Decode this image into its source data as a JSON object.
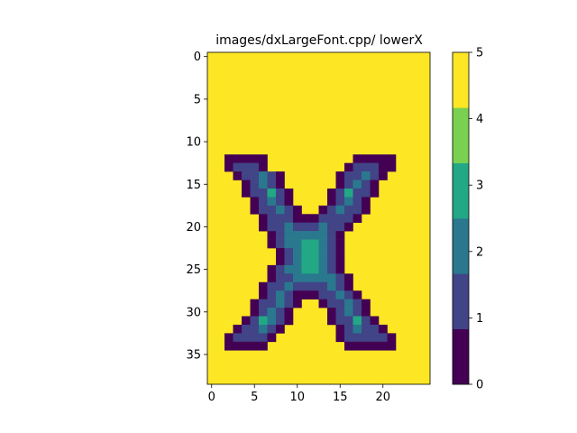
{
  "chart_data": {
    "type": "heatmap",
    "title": "images/dxLargeFont.cpp/ lowerX",
    "xlabel": "",
    "ylabel": "",
    "xlim": [
      -0.5,
      25.5
    ],
    "ylim": [
      38.5,
      -0.5
    ],
    "x_ticks": [
      0,
      5,
      10,
      15,
      20
    ],
    "y_ticks": [
      0,
      5,
      10,
      15,
      20,
      25,
      30,
      35
    ],
    "colorbar": {
      "min": 0,
      "max": 5,
      "ticks": [
        0,
        1,
        2,
        3,
        4,
        5
      ],
      "colormap": "viridis"
    },
    "grid": false,
    "background_value": 5,
    "cells_note_format": "[row, col_start, col_end_inclusive, value]",
    "cells": [
      [
        12,
        2,
        6,
        0
      ],
      [
        12,
        17,
        21,
        0
      ],
      [
        13,
        2,
        2,
        0
      ],
      [
        13,
        3,
        5,
        1
      ],
      [
        13,
        6,
        6,
        0
      ],
      [
        13,
        16,
        16,
        0
      ],
      [
        13,
        17,
        19,
        1
      ],
      [
        13,
        20,
        20,
        0
      ],
      [
        13,
        21,
        21,
        0
      ],
      [
        14,
        3,
        3,
        0
      ],
      [
        14,
        4,
        5,
        1
      ],
      [
        14,
        6,
        6,
        2
      ],
      [
        14,
        7,
        7,
        1
      ],
      [
        14,
        8,
        8,
        0
      ],
      [
        14,
        15,
        15,
        0
      ],
      [
        14,
        16,
        16,
        1
      ],
      [
        14,
        17,
        17,
        1
      ],
      [
        14,
        18,
        18,
        2
      ],
      [
        14,
        19,
        19,
        1
      ],
      [
        14,
        20,
        20,
        0
      ],
      [
        15,
        4,
        4,
        0
      ],
      [
        15,
        5,
        5,
        1
      ],
      [
        15,
        6,
        6,
        2
      ],
      [
        15,
        7,
        7,
        1
      ],
      [
        15,
        8,
        8,
        0
      ],
      [
        15,
        15,
        15,
        0
      ],
      [
        15,
        16,
        16,
        1
      ],
      [
        15,
        17,
        17,
        2
      ],
      [
        15,
        18,
        18,
        1
      ],
      [
        15,
        19,
        19,
        0
      ],
      [
        16,
        4,
        4,
        0
      ],
      [
        16,
        5,
        5,
        1
      ],
      [
        16,
        6,
        6,
        1
      ],
      [
        16,
        7,
        7,
        3
      ],
      [
        16,
        8,
        8,
        1
      ],
      [
        16,
        9,
        9,
        0
      ],
      [
        16,
        14,
        14,
        0
      ],
      [
        16,
        15,
        15,
        1
      ],
      [
        16,
        16,
        16,
        3
      ],
      [
        16,
        17,
        17,
        1
      ],
      [
        16,
        18,
        18,
        1
      ],
      [
        16,
        19,
        19,
        0
      ],
      [
        17,
        5,
        5,
        0
      ],
      [
        17,
        6,
        6,
        1
      ],
      [
        17,
        7,
        7,
        2
      ],
      [
        17,
        8,
        8,
        1
      ],
      [
        17,
        9,
        9,
        0
      ],
      [
        17,
        14,
        14,
        0
      ],
      [
        17,
        15,
        15,
        1
      ],
      [
        17,
        16,
        16,
        2
      ],
      [
        17,
        17,
        17,
        1
      ],
      [
        17,
        18,
        18,
        0
      ],
      [
        18,
        5,
        5,
        0
      ],
      [
        18,
        6,
        6,
        1
      ],
      [
        18,
        7,
        7,
        1
      ],
      [
        18,
        8,
        8,
        2
      ],
      [
        18,
        9,
        9,
        1
      ],
      [
        18,
        10,
        10,
        0
      ],
      [
        18,
        13,
        13,
        0
      ],
      [
        18,
        14,
        14,
        1
      ],
      [
        18,
        15,
        15,
        2
      ],
      [
        18,
        16,
        16,
        1
      ],
      [
        18,
        17,
        17,
        1
      ],
      [
        18,
        18,
        18,
        0
      ],
      [
        19,
        6,
        6,
        0
      ],
      [
        19,
        7,
        7,
        1
      ],
      [
        19,
        8,
        8,
        1
      ],
      [
        19,
        9,
        9,
        1
      ],
      [
        19,
        10,
        12,
        0
      ],
      [
        19,
        13,
        13,
        1
      ],
      [
        19,
        14,
        14,
        1
      ],
      [
        19,
        15,
        15,
        1
      ],
      [
        19,
        16,
        16,
        1
      ],
      [
        19,
        17,
        17,
        0
      ],
      [
        20,
        6,
        6,
        0
      ],
      [
        20,
        7,
        7,
        1
      ],
      [
        20,
        8,
        8,
        1
      ],
      [
        20,
        9,
        9,
        2
      ],
      [
        20,
        10,
        12,
        1
      ],
      [
        20,
        13,
        13,
        2
      ],
      [
        20,
        14,
        14,
        1
      ],
      [
        20,
        15,
        15,
        1
      ],
      [
        20,
        16,
        16,
        0
      ],
      [
        21,
        7,
        7,
        0
      ],
      [
        21,
        8,
        8,
        1
      ],
      [
        21,
        9,
        9,
        2
      ],
      [
        21,
        10,
        12,
        2
      ],
      [
        21,
        13,
        13,
        2
      ],
      [
        21,
        14,
        14,
        1
      ],
      [
        21,
        15,
        15,
        0
      ],
      [
        22,
        7,
        7,
        0
      ],
      [
        22,
        8,
        8,
        1
      ],
      [
        22,
        9,
        9,
        2
      ],
      [
        22,
        10,
        10,
        2
      ],
      [
        22,
        11,
        12,
        3
      ],
      [
        22,
        13,
        13,
        2
      ],
      [
        22,
        14,
        14,
        1
      ],
      [
        22,
        15,
        15,
        0
      ],
      [
        23,
        8,
        8,
        0
      ],
      [
        23,
        9,
        9,
        1
      ],
      [
        23,
        10,
        10,
        2
      ],
      [
        23,
        11,
        12,
        3
      ],
      [
        23,
        13,
        13,
        2
      ],
      [
        23,
        14,
        14,
        1
      ],
      [
        23,
        15,
        15,
        0
      ],
      [
        24,
        8,
        8,
        0
      ],
      [
        24,
        9,
        9,
        1
      ],
      [
        24,
        10,
        10,
        2
      ],
      [
        24,
        11,
        12,
        3
      ],
      [
        24,
        13,
        13,
        2
      ],
      [
        24,
        14,
        14,
        1
      ],
      [
        24,
        15,
        15,
        0
      ],
      [
        25,
        7,
        7,
        0
      ],
      [
        25,
        8,
        8,
        1
      ],
      [
        25,
        9,
        9,
        2
      ],
      [
        25,
        10,
        10,
        2
      ],
      [
        25,
        11,
        12,
        3
      ],
      [
        25,
        13,
        13,
        2
      ],
      [
        25,
        14,
        14,
        1
      ],
      [
        25,
        15,
        15,
        0
      ],
      [
        26,
        7,
        7,
        0
      ],
      [
        26,
        8,
        8,
        1
      ],
      [
        26,
        9,
        9,
        1
      ],
      [
        26,
        10,
        13,
        2
      ],
      [
        26,
        14,
        14,
        2
      ],
      [
        26,
        15,
        15,
        1
      ],
      [
        26,
        16,
        16,
        0
      ],
      [
        27,
        6,
        6,
        0
      ],
      [
        27,
        7,
        7,
        1
      ],
      [
        27,
        8,
        8,
        1
      ],
      [
        27,
        9,
        9,
        2
      ],
      [
        27,
        10,
        12,
        1
      ],
      [
        27,
        13,
        13,
        1
      ],
      [
        27,
        14,
        14,
        2
      ],
      [
        27,
        15,
        15,
        1
      ],
      [
        27,
        16,
        16,
        0
      ],
      [
        28,
        6,
        6,
        0
      ],
      [
        28,
        7,
        7,
        1
      ],
      [
        28,
        8,
        8,
        2
      ],
      [
        28,
        9,
        9,
        1
      ],
      [
        28,
        10,
        12,
        0
      ],
      [
        28,
        13,
        13,
        1
      ],
      [
        28,
        14,
        14,
        1
      ],
      [
        28,
        15,
        15,
        2
      ],
      [
        28,
        16,
        16,
        1
      ],
      [
        28,
        17,
        17,
        0
      ],
      [
        29,
        5,
        5,
        0
      ],
      [
        29,
        6,
        6,
        1
      ],
      [
        29,
        7,
        7,
        1
      ],
      [
        29,
        8,
        8,
        2
      ],
      [
        29,
        9,
        9,
        1
      ],
      [
        29,
        10,
        10,
        0
      ],
      [
        29,
        13,
        13,
        0
      ],
      [
        29,
        14,
        14,
        1
      ],
      [
        29,
        15,
        15,
        1
      ],
      [
        29,
        16,
        16,
        2
      ],
      [
        29,
        17,
        17,
        1
      ],
      [
        29,
        18,
        18,
        0
      ],
      [
        30,
        5,
        5,
        0
      ],
      [
        30,
        6,
        6,
        1
      ],
      [
        30,
        7,
        7,
        2
      ],
      [
        30,
        8,
        8,
        1
      ],
      [
        30,
        9,
        9,
        0
      ],
      [
        30,
        14,
        14,
        0
      ],
      [
        30,
        15,
        15,
        1
      ],
      [
        30,
        16,
        16,
        2
      ],
      [
        30,
        17,
        17,
        1
      ],
      [
        30,
        18,
        18,
        0
      ],
      [
        31,
        4,
        4,
        0
      ],
      [
        31,
        5,
        5,
        1
      ],
      [
        31,
        6,
        6,
        3
      ],
      [
        31,
        7,
        7,
        2
      ],
      [
        31,
        8,
        8,
        1
      ],
      [
        31,
        9,
        9,
        0
      ],
      [
        31,
        14,
        14,
        0
      ],
      [
        31,
        15,
        15,
        1
      ],
      [
        31,
        16,
        16,
        1
      ],
      [
        31,
        17,
        17,
        3
      ],
      [
        31,
        18,
        18,
        1
      ],
      [
        31,
        19,
        19,
        0
      ],
      [
        32,
        3,
        3,
        0
      ],
      [
        32,
        4,
        4,
        1
      ],
      [
        32,
        5,
        5,
        1
      ],
      [
        32,
        6,
        6,
        2
      ],
      [
        32,
        7,
        7,
        1
      ],
      [
        32,
        8,
        8,
        0
      ],
      [
        32,
        15,
        15,
        0
      ],
      [
        32,
        16,
        16,
        1
      ],
      [
        32,
        17,
        17,
        2
      ],
      [
        32,
        18,
        18,
        1
      ],
      [
        32,
        19,
        19,
        1
      ],
      [
        32,
        20,
        20,
        0
      ],
      [
        33,
        2,
        2,
        0
      ],
      [
        33,
        3,
        6,
        1
      ],
      [
        33,
        7,
        7,
        0
      ],
      [
        33,
        15,
        15,
        0
      ],
      [
        33,
        16,
        19,
        1
      ],
      [
        33,
        20,
        20,
        1
      ],
      [
        33,
        21,
        21,
        0
      ],
      [
        34,
        2,
        6,
        0
      ],
      [
        34,
        16,
        21,
        0
      ]
    ]
  }
}
